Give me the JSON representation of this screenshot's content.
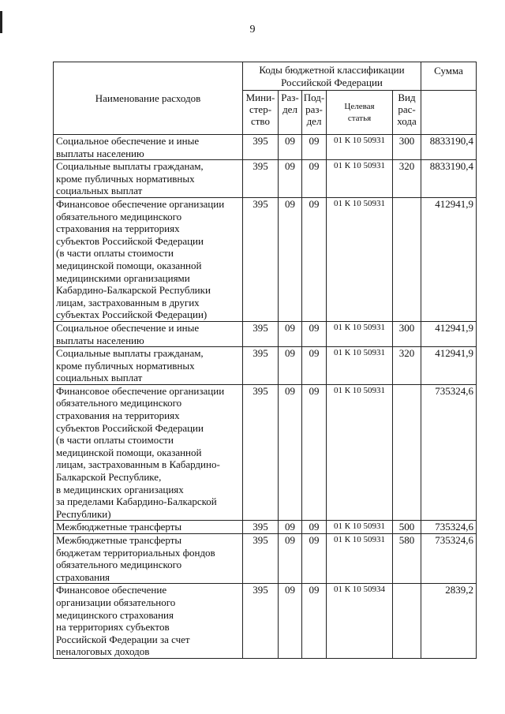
{
  "page_number": "9",
  "header": {
    "name": "Наименование расходов",
    "codes": "Коды бюджетной классификации\nРоссийской Федерации",
    "sum": "Сумма",
    "ministry": "Мини-\nстер-\nство",
    "section": "Раз-\nдел",
    "subsection": "Под-\nраз-\nдел",
    "target": "Целевая\nстатья",
    "type": "Вид\nрас-\nхода"
  },
  "rows": [
    {
      "name": "Социальное обеспечение и иные\nвыплаты населению",
      "ministry": "395",
      "section": "09",
      "subsection": "09",
      "target": "01 К 10 50931",
      "type": "300",
      "sum": "8833190,4"
    },
    {
      "name": "Социальные выплаты гражданам,\nкроме публичных нормативных\nсоциальных выплат",
      "ministry": "395",
      "section": "09",
      "subsection": "09",
      "target": "01 К 10 50931",
      "type": "320",
      "sum": "8833190,4"
    },
    {
      "name": "Финансовое обеспечение организации\nобязательного медицинского\nстрахования на территориях\nсубъектов Российской Федерации\n(в части оплаты стоимости\nмедицинской помощи, оказанной\nмедицинскими организациями\nКабардино-Балкарской Республики\nлицам, застрахованным в других\nсубъектах Российской Федерации)",
      "ministry": "395",
      "section": "09",
      "subsection": "09",
      "target": "01 К 10 50931",
      "type": "",
      "sum": "412941,9"
    },
    {
      "name": "Социальное обеспечение и иные\nвыплаты населению",
      "ministry": "395",
      "section": "09",
      "subsection": "09",
      "target": "01 К 10 50931",
      "type": "300",
      "sum": "412941,9"
    },
    {
      "name": "Социальные выплаты гражданам,\nкроме публичных нормативных\nсоциальных выплат",
      "ministry": "395",
      "section": "09",
      "subsection": "09",
      "target": "01 К 10 50931",
      "type": "320",
      "sum": "412941,9"
    },
    {
      "name": "Финансовое обеспечение организации\nобязательного медицинского\nстрахования на территориях\nсубъектов Российской Федерации\n(в части оплаты стоимости\nмедицинской помощи, оказанной\nлицам, застрахованным в Кабардино-\nБалкарской Республике,\nв медицинских организациях\nза пределами Кабардино-Балкарской\nРеспублики)",
      "ministry": "395",
      "section": "09",
      "subsection": "09",
      "target": "01 К 10 50931",
      "type": "",
      "sum": "735324,6"
    },
    {
      "name": "Межбюджетные трансферты",
      "ministry": "395",
      "section": "09",
      "subsection": "09",
      "target": "01 К 10 50931",
      "type": "500",
      "sum": "735324,6"
    },
    {
      "name": "Межбюджетные трансферты\nбюджетам территориальных фондов\nобязательного медицинского\nстрахования",
      "ministry": "395",
      "section": "09",
      "subsection": "09",
      "target": "01 К 10 50931",
      "type": "580",
      "sum": "735324,6"
    },
    {
      "name": "Финансовое обеспечение\nорганизации обязательного\nмедицинского страхования\nна территориях субъектов\nРоссийской Федерации за счет\nneналоговых доходов",
      "ministry": "395",
      "section": "09",
      "subsection": "09",
      "target": "01 К 10 50934",
      "type": "",
      "sum": "2839,2"
    }
  ]
}
